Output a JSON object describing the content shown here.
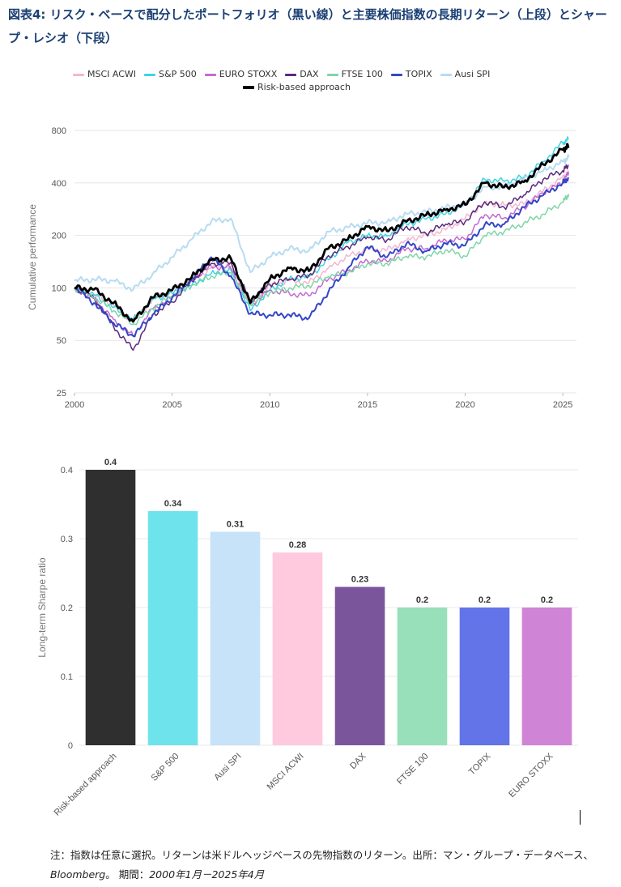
{
  "title": "図表4: リスク・ベースで配分したポートフォリオ（黒い線）と主要株価指数の長期リターン（上段）とシャープ・レシオ（下段）",
  "note": {
    "prefix": "注：指数は任意に選択。リターンは米ドルヘッジベースの先物指数のリターン。出所：マン・グループ・データベース、",
    "source": "Bloomberg",
    "middle": "。 期間：",
    "period": "2000年1月－2025年4月"
  },
  "chart_data": [
    {
      "type": "line",
      "ylabel": "Cumulative performance",
      "xlabel": "",
      "log_y": true,
      "ylim": [
        25,
        900
      ],
      "xlim": [
        2000,
        2025.7
      ],
      "yticks": [
        25,
        50,
        100,
        200,
        400,
        800
      ],
      "xticks": [
        2000,
        2005,
        2010,
        2015,
        2020,
        2025
      ],
      "grid": "horizontal",
      "legend_position": "top",
      "x": [
        2000,
        2001,
        2002,
        2003,
        2004,
        2005,
        2006,
        2007,
        2008,
        2009,
        2010,
        2011,
        2012,
        2013,
        2014,
        2015,
        2016,
        2017,
        2018,
        2019,
        2020,
        2021,
        2022,
        2023,
        2024,
        2025,
        2025.3
      ],
      "series": [
        {
          "name": "MSCI ACWI",
          "color": "#f4b6cf",
          "width": 1.5,
          "values": [
            100,
            92,
            80,
            64,
            86,
            97,
            110,
            130,
            133,
            80,
            103,
            110,
            107,
            130,
            152,
            168,
            165,
            188,
            202,
            215,
            250,
            308,
            300,
            302,
            360,
            432,
            455
          ]
        },
        {
          "name": "S&P 500",
          "color": "#3fd3e4",
          "width": 1.5,
          "values": [
            100,
            91,
            77,
            66,
            86,
            93,
            103,
            121,
            127,
            74,
            97,
            113,
            116,
            145,
            182,
            200,
            198,
            232,
            248,
            266,
            300,
            420,
            408,
            430,
            530,
            680,
            710
          ]
        },
        {
          "name": "EURO STOXX",
          "color": "#c36ad0",
          "width": 1.5,
          "values": [
            100,
            87,
            66,
            53,
            76,
            88,
            112,
            133,
            130,
            80,
            97,
            93,
            90,
            112,
            126,
            143,
            142,
            168,
            168,
            188,
            190,
            262,
            252,
            290,
            350,
            400,
            460
          ]
        },
        {
          "name": "DAX",
          "color": "#5a2a7d",
          "width": 1.5,
          "values": [
            100,
            88,
            60,
            44,
            70,
            83,
            110,
            138,
            140,
            84,
            105,
            112,
            118,
            153,
            172,
            196,
            188,
            226,
            205,
            232,
            240,
            312,
            290,
            340,
            420,
            470,
            505
          ]
        },
        {
          "name": "FTSE 100",
          "color": "#7fd6a6",
          "width": 1.5,
          "values": [
            100,
            88,
            74,
            62,
            76,
            90,
            103,
            117,
            122,
            80,
            94,
            100,
            103,
            116,
            122,
            138,
            138,
            152,
            150,
            165,
            152,
            200,
            210,
            235,
            265,
            310,
            345
          ]
        },
        {
          "name": "TOPIX",
          "color": "#3447c6",
          "width": 2,
          "values": [
            100,
            82,
            63,
            53,
            70,
            88,
            112,
            150,
            117,
            71,
            70,
            70,
            67,
            95,
            130,
            172,
            150,
            180,
            162,
            180,
            175,
            230,
            232,
            290,
            340,
            400,
            430
          ]
        },
        {
          "name": "Ausi SPI",
          "color": "#b7dcf2",
          "width": 2,
          "values": [
            110,
            112,
            110,
            98,
            120,
            150,
            190,
            240,
            250,
            123,
            150,
            168,
            163,
            210,
            222,
            236,
            238,
            266,
            272,
            288,
            300,
            380,
            378,
            418,
            470,
            530,
            560
          ]
        },
        {
          "name": "Risk-based approach",
          "color": "#000000",
          "width": 2.8,
          "values": [
            100,
            98,
            82,
            64,
            88,
            97,
            115,
            145,
            148,
            82,
            112,
            130,
            125,
            168,
            190,
            225,
            212,
            240,
            262,
            280,
            300,
            400,
            378,
            405,
            510,
            620,
            650
          ]
        }
      ]
    },
    {
      "type": "bar",
      "ylabel": "Long-term Sharpe ratio",
      "xlabel": "",
      "ylim": [
        0,
        0.4
      ],
      "yticks": [
        0,
        0.1,
        0.2,
        0.3,
        0.4
      ],
      "grid": "horizontal",
      "categories": [
        "Risk-based approach",
        "S&P 500",
        "Ausi SPI",
        "MSCI ACWI",
        "DAX",
        "FTSE 100",
        "TOPIX",
        "EURO STOXX"
      ],
      "values": [
        0.4,
        0.34,
        0.31,
        0.28,
        0.23,
        0.2,
        0.2,
        0.2
      ],
      "value_labels": [
        "0.4",
        "0.34",
        "0.31",
        "0.28",
        "0.23",
        "0.2",
        "0.2",
        "0.2"
      ],
      "colors": [
        "#2f2f2f",
        "#6fe3ec",
        "#c6e3fa",
        "#ffc9de",
        "#7b559c",
        "#97e0b9",
        "#6373e8",
        "#cf84d6"
      ]
    }
  ]
}
